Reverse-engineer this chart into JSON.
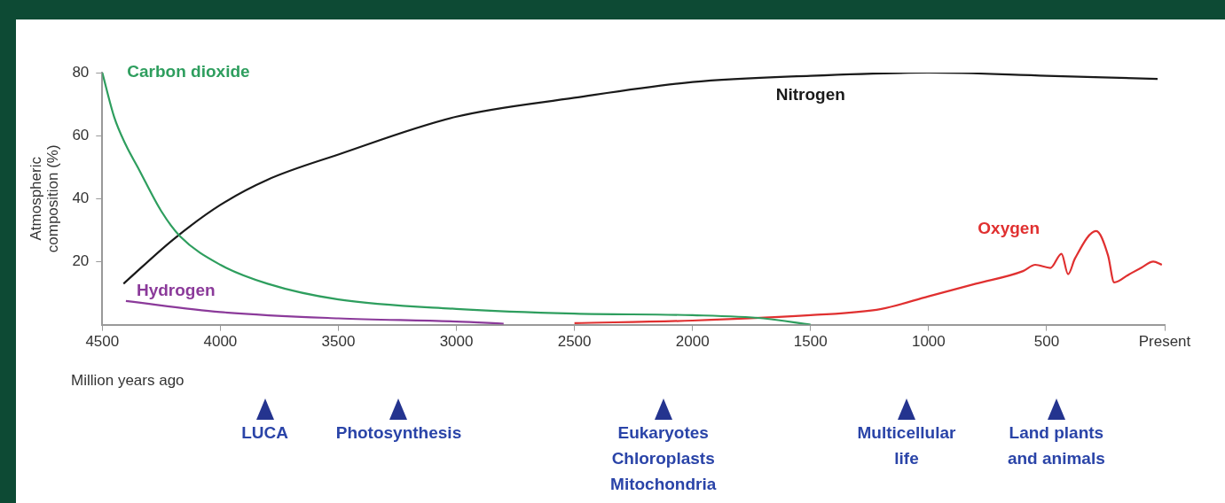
{
  "chart_data": {
    "type": "line",
    "xlabel": "Million years ago",
    "ylabel": "Atmospheric composition (%)",
    "xlim": [
      4500,
      0
    ],
    "xticks": [
      4500,
      4000,
      3500,
      3000,
      2500,
      2000,
      1500,
      1000,
      500,
      {
        "value": 0,
        "label": "Present"
      }
    ],
    "ylim": [
      0,
      80
    ],
    "yticks": [
      20,
      40,
      60,
      80
    ],
    "grid": false,
    "legend": false,
    "marker": "none",
    "line_style": "solid",
    "series": [
      {
        "name": "Carbon dioxide",
        "color": "#2e9e5e",
        "x": [
          4500,
          4450,
          4400,
          4350,
          4250,
          4170,
          4000,
          3800,
          3500,
          3000,
          2500,
          2000,
          1700,
          1500
        ],
        "values": [
          80,
          66,
          57,
          50,
          36,
          28,
          19,
          13,
          8,
          5,
          3.5,
          3,
          2,
          0
        ]
      },
      {
        "name": "Nitrogen",
        "color": "#1a1a1a",
        "x": [
          4410,
          4200,
          4000,
          3800,
          3500,
          3000,
          2500,
          2000,
          1500,
          1000,
          500,
          30
        ],
        "values": [
          13,
          27,
          38,
          46,
          54,
          66,
          72,
          77,
          79,
          80,
          79,
          78
        ]
      },
      {
        "name": "Hydrogen",
        "color": "#8b3a9a",
        "x": [
          4400,
          4000,
          3500,
          3000,
          2800
        ],
        "values": [
          7.5,
          4,
          2,
          1,
          0.3
        ]
      },
      {
        "name": "Oxygen",
        "color": "#e03030",
        "x": [
          2500,
          2000,
          1500,
          1200,
          1000,
          800,
          600,
          548,
          484,
          437,
          409,
          380,
          290,
          240,
          214,
          150,
          100,
          48,
          12
        ],
        "values": [
          0.5,
          1.3,
          3,
          5,
          9,
          13,
          17,
          19,
          18,
          22.5,
          16,
          21,
          29.7,
          22,
          13.4,
          16,
          18,
          20,
          19
        ]
      }
    ],
    "annotations": [
      "LUCA",
      "Photosynthesis",
      "Eukaryotes\nChloroplasts\nMitochondria",
      "Multicellular\nlife",
      "Land plants\nand animals"
    ]
  }
}
